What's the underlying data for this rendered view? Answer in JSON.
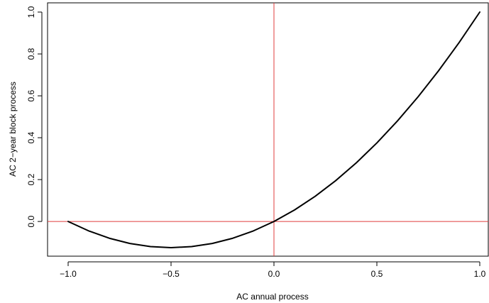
{
  "chart_data": {
    "type": "line",
    "title": "",
    "xlabel": "AC annual process",
    "ylabel": "AC 2−year block process",
    "xlim": [
      -1.0,
      1.0
    ],
    "ylim": [
      -0.125,
      1.0
    ],
    "x_ticks": [
      -1.0,
      -0.5,
      0.0,
      0.5,
      1.0
    ],
    "x_tick_labels": [
      "−1.0",
      "−0.5",
      "0.0",
      "0.5",
      "1.0"
    ],
    "y_ticks": [
      0.0,
      0.2,
      0.4,
      0.6,
      0.8,
      1.0
    ],
    "y_tick_labels": [
      "0.0",
      "0.2",
      "0.4",
      "0.6",
      "0.8",
      "1.0"
    ],
    "grid": false,
    "reference_lines": {
      "color": "#e03c3c",
      "h": 0.0,
      "v": 0.0
    },
    "series": [
      {
        "color": "#000000",
        "x": [
          -1.0,
          -0.9,
          -0.8,
          -0.7,
          -0.6,
          -0.5,
          -0.4,
          -0.3,
          -0.2,
          -0.1,
          0.0,
          0.1,
          0.2,
          0.3,
          0.4,
          0.5,
          0.6,
          0.7,
          0.8,
          0.9,
          1.0
        ],
        "y": [
          0.0,
          -0.045,
          -0.08,
          -0.105,
          -0.12,
          -0.125,
          -0.12,
          -0.105,
          -0.08,
          -0.045,
          0.0,
          0.055,
          0.12,
          0.195,
          0.28,
          0.375,
          0.48,
          0.595,
          0.72,
          0.855,
          1.0
        ]
      }
    ]
  }
}
